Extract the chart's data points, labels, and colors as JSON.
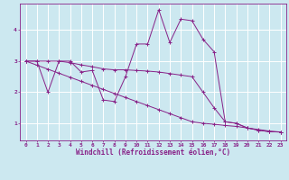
{
  "background_color": "#cce8f0",
  "line_color": "#882288",
  "grid_color": "#ffffff",
  "xlabel": "Windchill (Refroidissement éolien,°C)",
  "xlim": [
    -0.5,
    23.5
  ],
  "ylim": [
    0.45,
    4.85
  ],
  "yticks": [
    1,
    2,
    3,
    4
  ],
  "xticks": [
    0,
    1,
    2,
    3,
    4,
    5,
    6,
    7,
    8,
    9,
    10,
    11,
    12,
    13,
    14,
    15,
    16,
    17,
    18,
    19,
    20,
    21,
    22,
    23
  ],
  "line_straight_y": [
    3.0,
    2.87,
    2.74,
    2.61,
    2.48,
    2.35,
    2.22,
    2.09,
    1.96,
    1.83,
    1.7,
    1.57,
    1.44,
    1.31,
    1.18,
    1.05,
    1.0,
    0.97,
    0.93,
    0.9,
    0.85,
    0.8,
    0.75,
    0.72
  ],
  "line_jagged_y": [
    3.0,
    3.0,
    2.0,
    3.0,
    3.0,
    2.65,
    2.7,
    1.75,
    1.7,
    2.5,
    3.55,
    3.55,
    4.65,
    3.6,
    4.35,
    4.3,
    3.7,
    3.3,
    1.05,
    1.0,
    0.85,
    0.78,
    0.73,
    0.72
  ],
  "line_mid_y": [
    3.0,
    3.0,
    3.0,
    3.0,
    2.95,
    2.88,
    2.82,
    2.75,
    2.72,
    2.72,
    2.7,
    2.68,
    2.65,
    2.6,
    2.55,
    2.5,
    2.0,
    1.5,
    1.05,
    1.0,
    0.85,
    0.78,
    0.73,
    0.72
  ],
  "axis_fontsize": 5.5,
  "tick_fontsize": 4.5
}
